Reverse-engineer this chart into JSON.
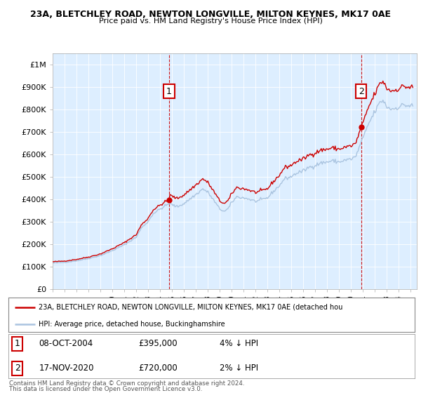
{
  "title1": "23A, BLETCHLEY ROAD, NEWTON LONGVILLE, MILTON KEYNES, MK17 0AE",
  "title2": "Price paid vs. HM Land Registry's House Price Index (HPI)",
  "legend_line1": "23A, BLETCHLEY ROAD, NEWTON LONGVILLE, MILTON KEYNES, MK17 0AE (detached hou",
  "legend_line2": "HPI: Average price, detached house, Buckinghamshire",
  "ann1_note": "08-OCT-2004",
  "ann1_amount": "£395,000",
  "ann1_pct": "4% ↓ HPI",
  "ann2_note": "17-NOV-2020",
  "ann2_amount": "£720,000",
  "ann2_pct": "2% ↓ HPI",
  "footer1": "Contains HM Land Registry data © Crown copyright and database right 2024.",
  "footer2": "This data is licensed under the Open Government Licence v3.0.",
  "hpi_color": "#aac4e0",
  "price_color": "#cc0000",
  "ann_color": "#cc0000",
  "plot_bg": "#ddeeff",
  "ylim": [
    0,
    1050000
  ],
  "sale1_year": 2004,
  "sale1_month": 10,
  "sale1_day": 8,
  "sale1_price": 395000,
  "sale2_year": 2020,
  "sale2_month": 11,
  "sale2_day": 17,
  "sale2_price": 720000
}
